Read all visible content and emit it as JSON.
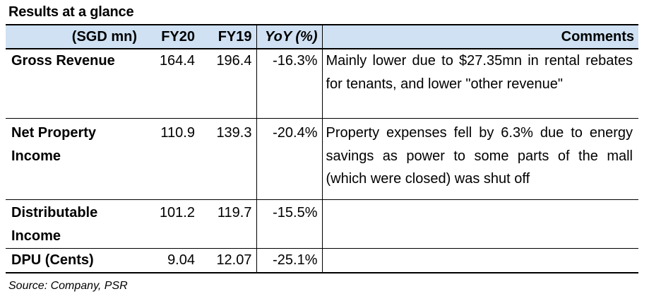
{
  "title": "Results at a glance",
  "table": {
    "headers": {
      "metric": "(SGD mn)",
      "fy20": "FY20",
      "fy19": "FY19",
      "yoy": "YoY (%)",
      "comments": "Comments"
    },
    "rows": [
      {
        "metric": "Gross Revenue",
        "fy20": "164.4",
        "fy19": "196.4",
        "yoy": "-16.3%",
        "comment": "Mainly lower due to $27.35mn in rental rebates for tenants, and lower \"other revenue\""
      },
      {
        "metric": "Net Property Income",
        "fy20": "110.9",
        "fy19": "139.3",
        "yoy": "-20.4%",
        "comment": "Property expenses fell by 6.3% due to energy savings as power to some parts of the mall (which were closed) was shut off"
      },
      {
        "metric": "Distributable Income",
        "fy20": "101.2",
        "fy19": "119.7",
        "yoy": "-15.5%",
        "comment": ""
      },
      {
        "metric": "DPU (Cents)",
        "fy20": "9.04",
        "fy19": "12.07",
        "yoy": "-25.1%",
        "comment": ""
      }
    ]
  },
  "source": "Source: Company, PSR",
  "colors": {
    "header_background": "#cfe1f3",
    "border": "#000000",
    "text": "#000000"
  }
}
